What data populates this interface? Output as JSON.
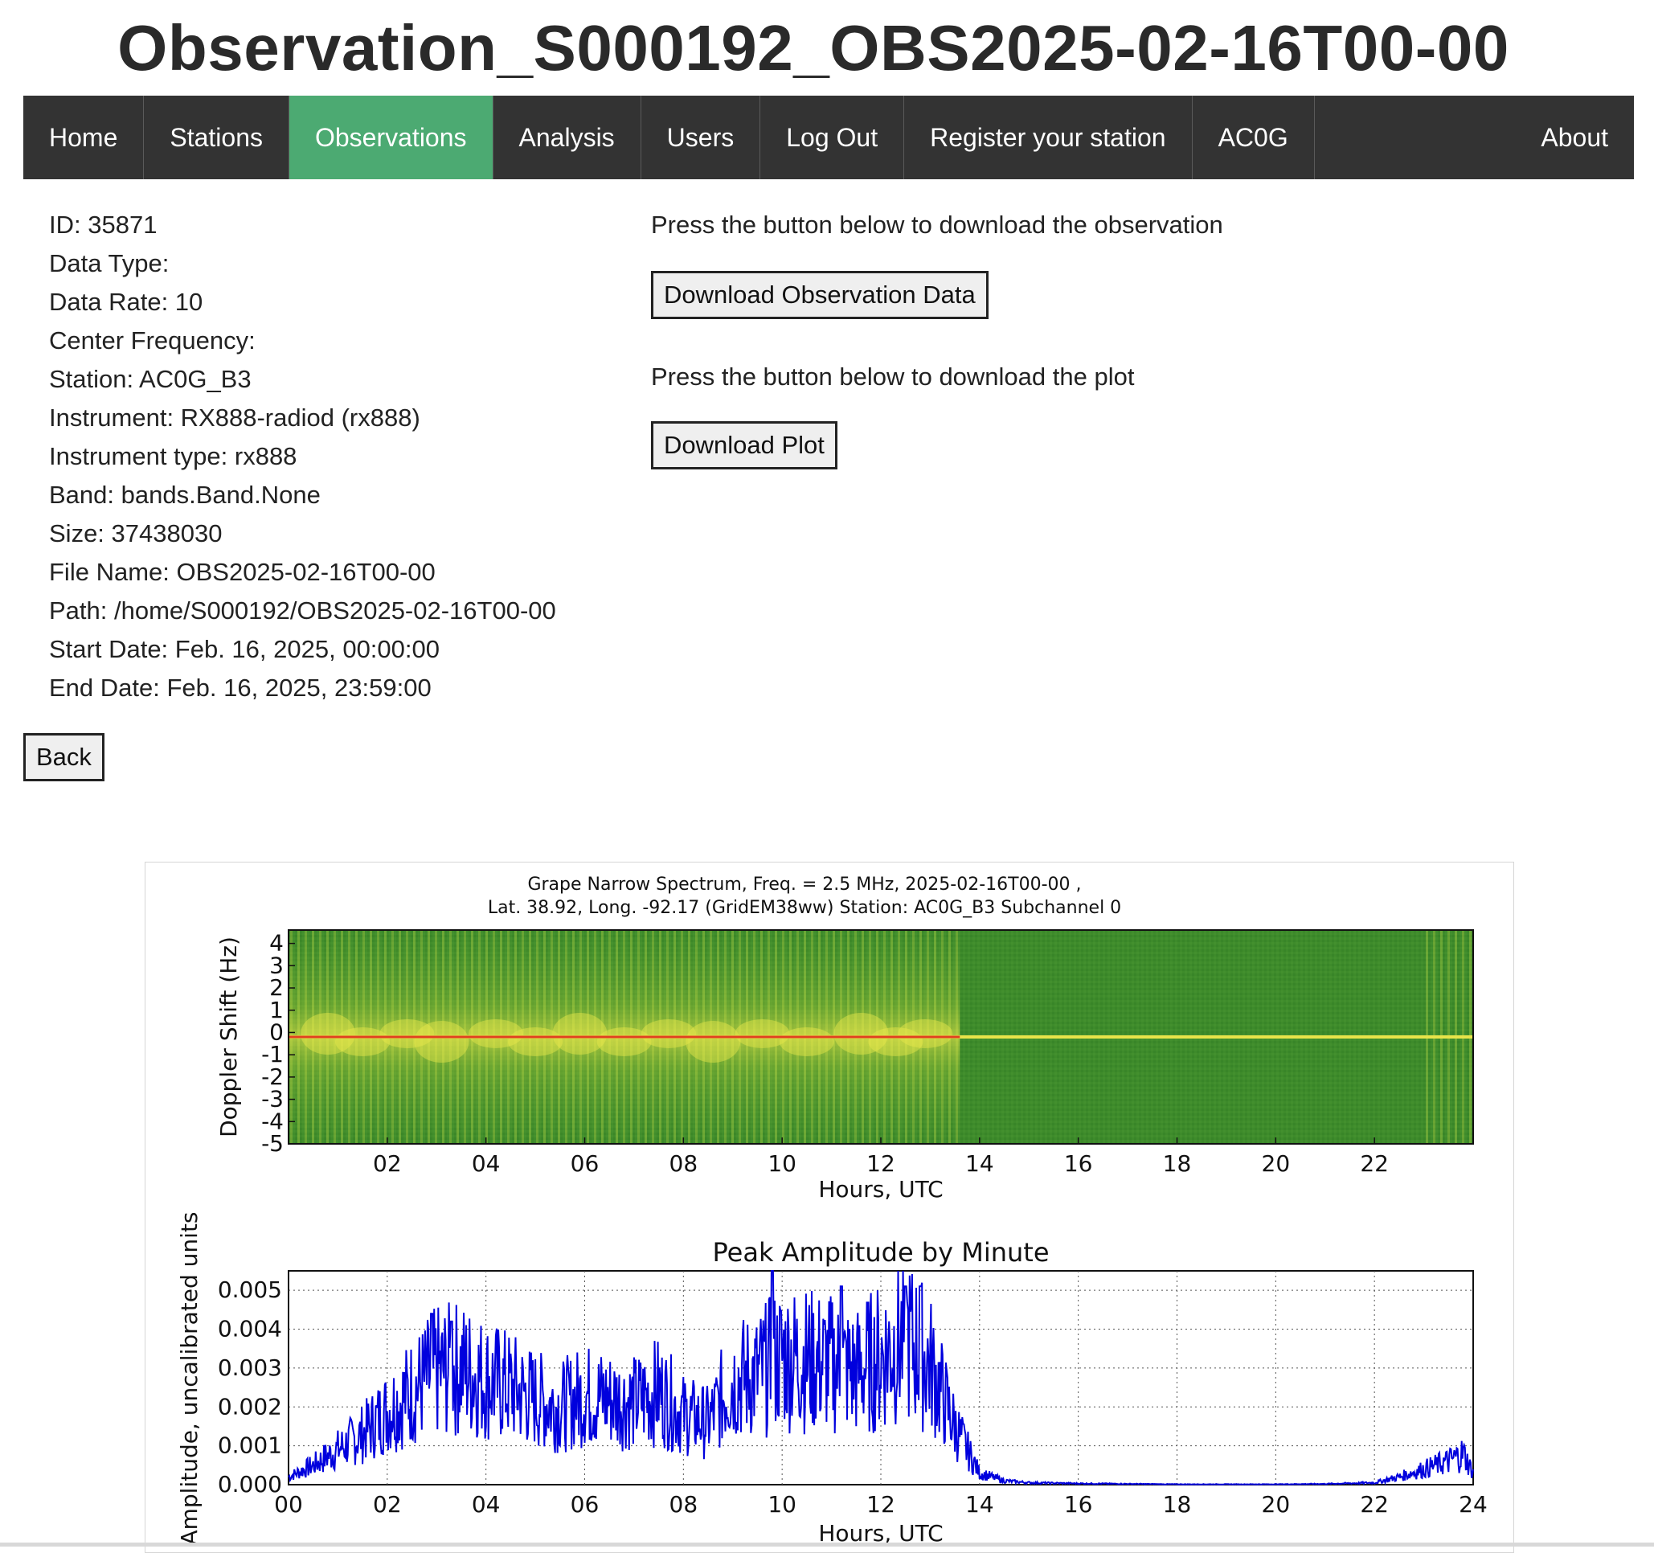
{
  "page": {
    "title": "Observation_S000192_OBS2025-02-16T00-00"
  },
  "nav": {
    "items": [
      {
        "label": "Home",
        "active": false
      },
      {
        "label": "Stations",
        "active": false
      },
      {
        "label": "Observations",
        "active": true
      },
      {
        "label": "Analysis",
        "active": false
      },
      {
        "label": "Users",
        "active": false
      },
      {
        "label": "Log Out",
        "active": false
      },
      {
        "label": "Register your station",
        "active": false
      },
      {
        "label": "AC0G",
        "active": false
      }
    ],
    "about": "About",
    "colors": {
      "bar": "#333333",
      "active": "#4CAA72",
      "text": "#ffffff"
    }
  },
  "details": [
    "ID: 35871",
    "Data Type:",
    "Data Rate: 10",
    "Center Frequency:",
    "Station: AC0G_B3",
    "Instrument: RX888-radiod (rx888)",
    "Instrument type: rx888",
    "Band: bands.Band.None",
    "Size: 37438030",
    "File Name: OBS2025-02-16T00-00",
    "Path: /home/S000192/OBS2025-02-16T00-00",
    "Start Date: Feb. 16, 2025, 00:00:00",
    "End Date: Feb. 16, 2025, 23:59:00"
  ],
  "downloads": {
    "obs_text": "Press the button below to download the observation",
    "obs_button": "Download Observation Data",
    "plot_text": "Press the button below to download the plot",
    "plot_button": "Download Plot"
  },
  "back_button": "Back",
  "chart_data": [
    {
      "type": "heatmap",
      "title": "Grape Narrow Spectrum, Freq. = 2.5 MHz, 2025-02-16T00-00 ,",
      "subtitle": "Lat.  38.92, Long. -92.17 (GridEM38ww) Station: AC0G_B3 Subchannel 0",
      "xlabel": "Hours, UTC",
      "ylabel": "Doppler Shift (Hz)",
      "xticks": [
        "02",
        "04",
        "06",
        "08",
        "10",
        "12",
        "14",
        "16",
        "18",
        "20",
        "22"
      ],
      "yticks": [
        "4",
        "3",
        "2",
        "1",
        "0",
        "-1",
        "-2",
        "-3",
        "-4",
        "-5"
      ],
      "xlim": [
        0,
        24
      ],
      "ylim": [
        -5,
        5
      ],
      "colors": {
        "background": "#3d8c2a",
        "active": "#b6d53c",
        "carrier": "#e04020"
      },
      "active_hours": [
        0,
        13.6
      ],
      "carrier_shift_hz": 0
    },
    {
      "type": "line",
      "title": "Peak Amplitude by Minute",
      "xlabel": "Hours, UTC",
      "ylabel": "Amplitude, uncalibrated units",
      "xticks": [
        "00",
        "02",
        "04",
        "06",
        "08",
        "10",
        "12",
        "14",
        "16",
        "18",
        "20",
        "22",
        "24"
      ],
      "yticks": [
        "0.005",
        "0.004",
        "0.003",
        "0.002",
        "0.001",
        "0.000"
      ],
      "xlim": [
        0,
        24
      ],
      "ylim": [
        0,
        0.0055
      ],
      "grid": true,
      "color": "#0000dd",
      "x": [
        0,
        0.5,
        1,
        1.5,
        2,
        2.5,
        3,
        3.5,
        4,
        4.5,
        5,
        5.5,
        6,
        6.5,
        7,
        7.5,
        8,
        8.5,
        9,
        9.5,
        10,
        10.5,
        11,
        11.5,
        12,
        12.5,
        13,
        13.5,
        14,
        14.5,
        15,
        16,
        17,
        18,
        19,
        20,
        21,
        22,
        22.5,
        23,
        23.5,
        23.8,
        24
      ],
      "y": [
        0.0002,
        0.0005,
        0.0009,
        0.0013,
        0.0019,
        0.0024,
        0.0029,
        0.003,
        0.0027,
        0.0025,
        0.0022,
        0.002,
        0.0023,
        0.0022,
        0.0021,
        0.0024,
        0.0018,
        0.0016,
        0.0027,
        0.0028,
        0.0033,
        0.0032,
        0.0031,
        0.0029,
        0.0033,
        0.0038,
        0.0031,
        0.0015,
        0.0003,
        0.0001,
        5e-05,
        3e-05,
        2e-05,
        1e-05,
        1e-05,
        1e-05,
        2e-05,
        5e-05,
        0.0002,
        0.0004,
        0.0006,
        0.0008,
        0.0003
      ],
      "peaks": [
        {
          "x": 2.9,
          "y": 0.0044
        },
        {
          "x": 3.3,
          "y": 0.0042
        },
        {
          "x": 9.8,
          "y": 0.0055
        },
        {
          "x": 11.2,
          "y": 0.0051
        },
        {
          "x": 12.5,
          "y": 0.0051
        },
        {
          "x": 12.8,
          "y": 0.0051
        }
      ]
    }
  ]
}
